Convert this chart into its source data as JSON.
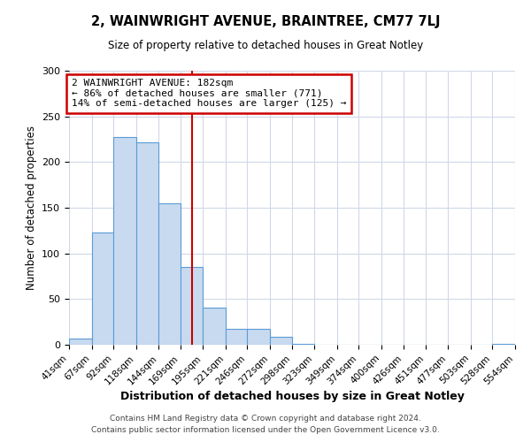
{
  "title": "2, WAINWRIGHT AVENUE, BRAINTREE, CM77 7LJ",
  "subtitle": "Size of property relative to detached houses in Great Notley",
  "xlabel": "Distribution of detached houses by size in Great Notley",
  "ylabel": "Number of detached properties",
  "footer_line1": "Contains HM Land Registry data © Crown copyright and database right 2024.",
  "footer_line2": "Contains public sector information licensed under the Open Government Licence v3.0.",
  "bin_edges": [
    41,
    67,
    92,
    118,
    144,
    169,
    195,
    221,
    246,
    272,
    298,
    323,
    349,
    374,
    400,
    426,
    451,
    477,
    503,
    528,
    554
  ],
  "bin_counts": [
    7,
    123,
    227,
    222,
    155,
    85,
    41,
    17,
    17,
    9,
    1,
    0,
    0,
    0,
    0,
    0,
    0,
    0,
    0,
    1
  ],
  "bar_color": "#c8daf0",
  "bar_edge_color": "#5b9bd5",
  "property_size": 182,
  "vline_color": "#cc0000",
  "annotation_line1": "2 WAINWRIGHT AVENUE: 182sqm",
  "annotation_line2": "← 86% of detached houses are smaller (771)",
  "annotation_line3": "14% of semi-detached houses are larger (125) →",
  "annotation_box_color": "#cc0000",
  "ylim": [
    0,
    300
  ],
  "yticks": [
    0,
    50,
    100,
    150,
    200,
    250,
    300
  ],
  "background_color": "#ffffff",
  "grid_color": "#d0d8e8"
}
